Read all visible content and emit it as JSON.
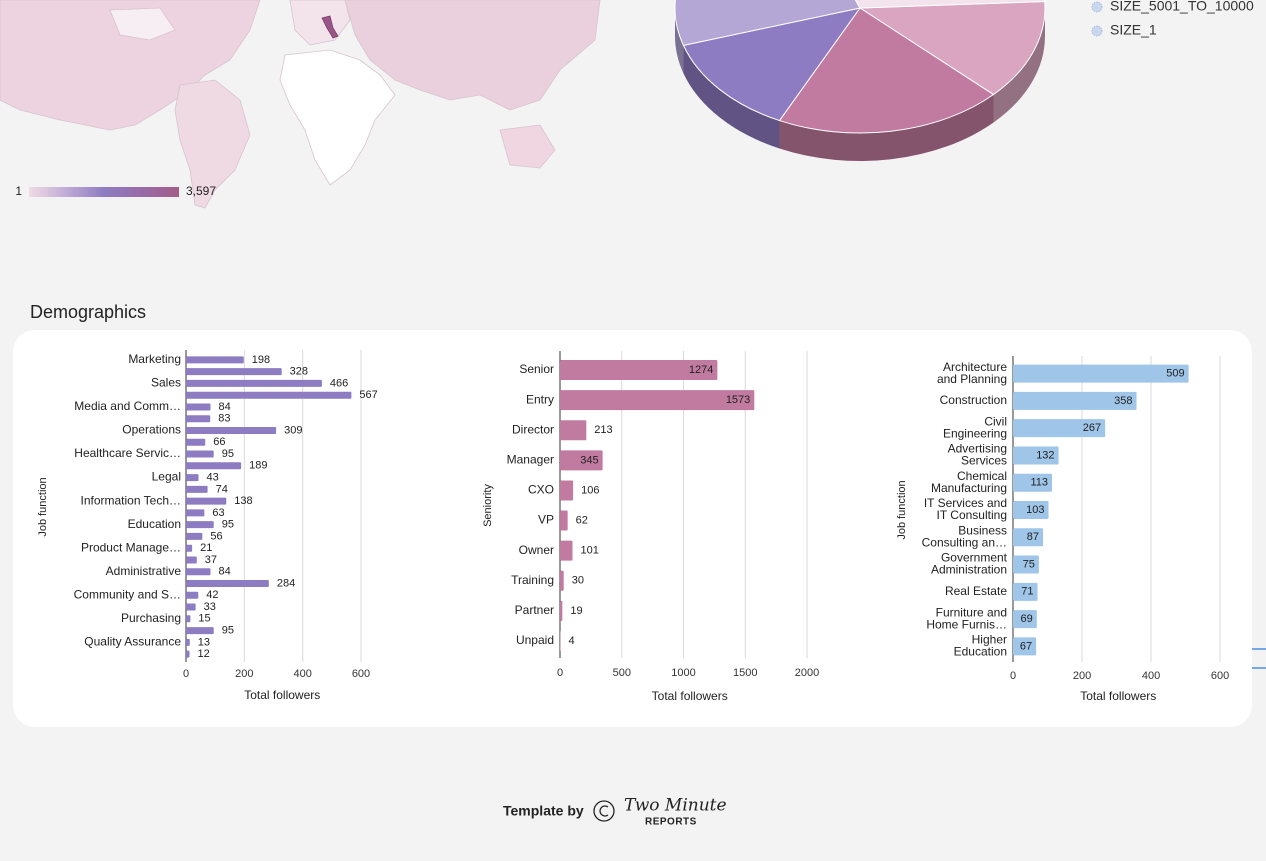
{
  "chart_data": [
    {
      "type": "map",
      "color_scale": {
        "ticks": [
          1,
          {
            "value": 3597,
            "label": "3,597"
          }
        ],
        "colors": [
          "#f1dbe6",
          "#8e7cc3",
          "#a35c8a"
        ]
      }
    },
    {
      "type": "pie",
      "values": [
        13,
        20,
        13,
        24,
        30
      ],
      "colors": [
        "#d9a5c0",
        "#c27ba0",
        "#8e7cc3",
        "#b4a7d6",
        "#f3e3ec"
      ],
      "legend": [
        "SIZE_5001_TO_10000",
        "SIZE_1"
      ],
      "legend_marker_color": "#c9d7ee"
    },
    {
      "type": "hbar",
      "y_label": "Job function",
      "x_label": "Total followers",
      "categories": [
        "Marketing",
        null,
        "Sales",
        null,
        "Media and Comm…",
        null,
        "Operations",
        null,
        "Healthcare Servic…",
        null,
        "Legal",
        null,
        "Information Tech…",
        null,
        "Education",
        null,
        "Product Manage…",
        null,
        "Administrative",
        null,
        "Community and S…",
        null,
        "Purchasing",
        null,
        "Quality Assurance",
        null
      ],
      "values": [
        198,
        328,
        466,
        567,
        84,
        83,
        309,
        66,
        95,
        189,
        43,
        74,
        138,
        63,
        95,
        56,
        21,
        37,
        84,
        284,
        42,
        33,
        15,
        95,
        13,
        12
      ],
      "color": "#8e7cc3",
      "xlim": [
        0,
        660
      ],
      "xticks": [
        0,
        200,
        400,
        600
      ],
      "grid": true,
      "value_label_position": "outside"
    },
    {
      "type": "hbar",
      "y_label": "Seniority",
      "x_label": "Total followers",
      "categories": [
        "Senior",
        "Entry",
        "Director",
        "Manager",
        "CXO",
        "VP",
        "Owner",
        "Training",
        "Partner",
        "Unpaid"
      ],
      "values": [
        1274,
        1573,
        213,
        345,
        106,
        62,
        101,
        30,
        19,
        4
      ],
      "color": "#c27ba0",
      "xlim": [
        0,
        2100
      ],
      "xticks": [
        0,
        500,
        1000,
        1500,
        2000
      ],
      "grid": true,
      "value_label_position": "auto"
    },
    {
      "type": "hbar",
      "y_label": "Job function",
      "x_label": "Total followers",
      "categories": [
        [
          "Architecture",
          "and Planning"
        ],
        [
          "Construction"
        ],
        [
          "Civil",
          "Engineering"
        ],
        [
          "Advertising",
          "Services"
        ],
        [
          "Chemical",
          "Manufacturing"
        ],
        [
          "IT Services and",
          "IT Consulting"
        ],
        [
          "Business",
          "Consulting an…"
        ],
        [
          "Government",
          "Administration"
        ],
        [
          "Real Estate"
        ],
        [
          "Furniture and",
          "Home Furnis…"
        ],
        [
          "Higher",
          "Education"
        ]
      ],
      "values": [
        509,
        358,
        267,
        132,
        113,
        103,
        87,
        75,
        71,
        69,
        67
      ],
      "color": "#9fc5e8",
      "xlim": [
        0,
        610
      ],
      "xticks": [
        0,
        200,
        400,
        600
      ],
      "grid": true,
      "value_label_position": "inside"
    }
  ],
  "section_title": "Demographics",
  "footer": {
    "template_by": "Template by",
    "brand_line1": "Two Minute",
    "brand_line2": "REPORTS"
  }
}
